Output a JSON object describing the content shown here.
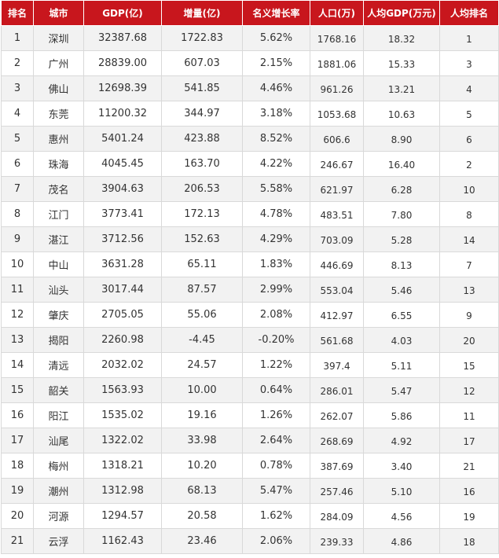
{
  "table": {
    "headers": [
      "排名",
      "城市",
      "GDP(亿)",
      "增量(亿)",
      "名义增长率",
      "人口(万)",
      "人均GDP(万元)",
      "人均排名"
    ],
    "rows": [
      [
        "1",
        "深圳",
        "32387.68",
        "1722.83",
        "5.62%",
        "1768.16",
        "18.32",
        "1"
      ],
      [
        "2",
        "广州",
        "28839.00",
        "607.03",
        "2.15%",
        "1881.06",
        "15.33",
        "3"
      ],
      [
        "3",
        "佛山",
        "12698.39",
        "541.85",
        "4.46%",
        "961.26",
        "13.21",
        "4"
      ],
      [
        "4",
        "东莞",
        "11200.32",
        "344.97",
        "3.18%",
        "1053.68",
        "10.63",
        "5"
      ],
      [
        "5",
        "惠州",
        "5401.24",
        "423.88",
        "8.52%",
        "606.6",
        "8.90",
        "6"
      ],
      [
        "6",
        "珠海",
        "4045.45",
        "163.70",
        "4.22%",
        "246.67",
        "16.40",
        "2"
      ],
      [
        "7",
        "茂名",
        "3904.63",
        "206.53",
        "5.58%",
        "621.97",
        "6.28",
        "10"
      ],
      [
        "8",
        "江门",
        "3773.41",
        "172.13",
        "4.78%",
        "483.51",
        "7.80",
        "8"
      ],
      [
        "9",
        "湛江",
        "3712.56",
        "152.63",
        "4.29%",
        "703.09",
        "5.28",
        "14"
      ],
      [
        "10",
        "中山",
        "3631.28",
        "65.11",
        "1.83%",
        "446.69",
        "8.13",
        "7"
      ],
      [
        "11",
        "汕头",
        "3017.44",
        "87.57",
        "2.99%",
        "553.04",
        "5.46",
        "13"
      ],
      [
        "12",
        "肇庆",
        "2705.05",
        "55.06",
        "2.08%",
        "412.97",
        "6.55",
        "9"
      ],
      [
        "13",
        "揭阳",
        "2260.98",
        "-4.45",
        "-0.20%",
        "561.68",
        "4.03",
        "20"
      ],
      [
        "14",
        "清远",
        "2032.02",
        "24.57",
        "1.22%",
        "397.4",
        "5.11",
        "15"
      ],
      [
        "15",
        "韶关",
        "1563.93",
        "10.00",
        "0.64%",
        "286.01",
        "5.47",
        "12"
      ],
      [
        "16",
        "阳江",
        "1535.02",
        "19.16",
        "1.26%",
        "262.07",
        "5.86",
        "11"
      ],
      [
        "17",
        "汕尾",
        "1322.02",
        "33.98",
        "2.64%",
        "268.69",
        "4.92",
        "17"
      ],
      [
        "18",
        "梅州",
        "1318.21",
        "10.20",
        "0.78%",
        "387.69",
        "3.40",
        "21"
      ],
      [
        "19",
        "潮州",
        "1312.98",
        "68.13",
        "5.47%",
        "257.46",
        "5.10",
        "16"
      ],
      [
        "20",
        "河源",
        "1294.57",
        "20.58",
        "1.62%",
        "284.09",
        "4.56",
        "19"
      ],
      [
        "21",
        "云浮",
        "1162.43",
        "23.46",
        "2.06%",
        "239.33",
        "4.86",
        "18"
      ]
    ]
  },
  "colors": {
    "header_bg": "#c8161d",
    "header_text": "#ffffff",
    "row_alt": "#f2f2f2"
  }
}
